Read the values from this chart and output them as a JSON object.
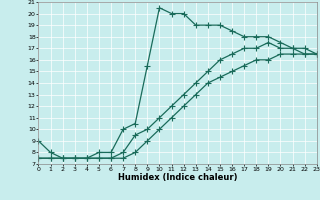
{
  "xlabel": "Humidex (Indice chaleur)",
  "bg_color": "#c8eded",
  "grid_color": "#b0d8d8",
  "line_color": "#1a6b5a",
  "xlim": [
    0,
    23
  ],
  "ylim": [
    7,
    21
  ],
  "xticks": [
    0,
    1,
    2,
    3,
    4,
    5,
    6,
    7,
    8,
    9,
    10,
    11,
    12,
    13,
    14,
    15,
    16,
    17,
    18,
    19,
    20,
    21,
    22,
    23
  ],
  "yticks": [
    7,
    8,
    9,
    10,
    11,
    12,
    13,
    14,
    15,
    16,
    17,
    18,
    19,
    20,
    21
  ],
  "line1_x": [
    0,
    1,
    2,
    3,
    4,
    5,
    6,
    7,
    8,
    9,
    10,
    11,
    12,
    13,
    14,
    15,
    16,
    17,
    18,
    19,
    20,
    21,
    22,
    23
  ],
  "line1_y": [
    9,
    8,
    7.5,
    7.5,
    7.5,
    8,
    8,
    10,
    10.5,
    15.5,
    20.5,
    20,
    20,
    19,
    19,
    19,
    18.5,
    18,
    18,
    18,
    17.5,
    17,
    17,
    16.5
  ],
  "line2_x": [
    0,
    1,
    2,
    3,
    4,
    5,
    6,
    7,
    8,
    9,
    10,
    11,
    12,
    13,
    14,
    15,
    16,
    17,
    18,
    19,
    20,
    21,
    22,
    23
  ],
  "line2_y": [
    7.5,
    7.5,
    7.5,
    7.5,
    7.5,
    7.5,
    7.5,
    8.0,
    9.5,
    10.0,
    11.0,
    12.0,
    13.0,
    14.0,
    15.0,
    16.0,
    16.5,
    17.0,
    17.0,
    17.5,
    17.0,
    17.0,
    16.5,
    16.5
  ],
  "line3_x": [
    0,
    1,
    2,
    3,
    4,
    5,
    6,
    7,
    8,
    9,
    10,
    11,
    12,
    13,
    14,
    15,
    16,
    17,
    18,
    19,
    20,
    21,
    22,
    23
  ],
  "line3_y": [
    7.5,
    7.5,
    7.5,
    7.5,
    7.5,
    7.5,
    7.5,
    7.5,
    8.0,
    9.0,
    10.0,
    11.0,
    12.0,
    13.0,
    14.0,
    14.5,
    15.0,
    15.5,
    16.0,
    16.0,
    16.5,
    16.5,
    16.5,
    16.5
  ],
  "marker": "+",
  "markersize": 4,
  "linewidth": 0.9
}
